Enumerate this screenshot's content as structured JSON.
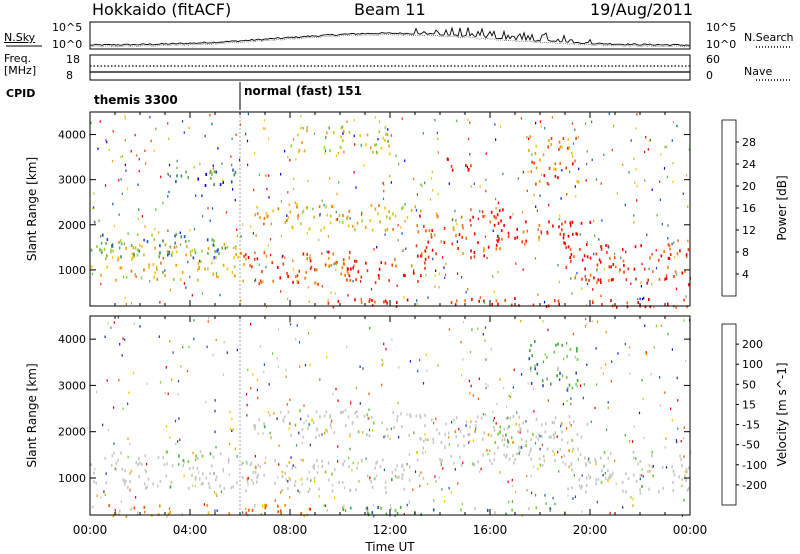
{
  "header": {
    "title": "Hokkaido (fitACF)",
    "beam": "Beam 11",
    "date": "19/Aug/2011"
  },
  "noise": {
    "left_label": "N.Sky",
    "right_label": "N.Search",
    "y_ticks_left": [
      "10^5",
      "10^0"
    ],
    "y_ticks_right": [
      "10^5",
      "10^0"
    ]
  },
  "freq": {
    "left_label": "Freq.",
    "left_unit": "[MHz]",
    "right_label": "Nave",
    "y_ticks_left": [
      "18",
      "8"
    ],
    "y_ticks_right": [
      "60",
      "0"
    ]
  },
  "cpid": {
    "label": "CPID",
    "programs": [
      {
        "name": "themis 3300",
        "start": 0.0
      },
      {
        "name": "normal (fast) 151",
        "start": 6.0
      }
    ]
  },
  "colors": {
    "power": [
      "#0000f0",
      "#1e50c8",
      "#3c8c64",
      "#64b450",
      "#a0d23c",
      "#f5c814",
      "#f5a014",
      "#f07814",
      "#f03c0a",
      "#f00000"
    ],
    "velocity": [
      "#e60000",
      "#f05a00",
      "#f09600",
      "#f0c800",
      "#c8c8c0",
      "#c8c8c0",
      "#78d23c",
      "#3caa3c",
      "#2850aa",
      "#1428c8"
    ]
  },
  "chart_data": [
    {
      "type": "heatmap",
      "name": "power",
      "x_range_hours": [
        0,
        24
      ],
      "ylim": [
        200,
        4500
      ],
      "ylabel": "Slant Range [km]",
      "y_ticks": [
        1000,
        2000,
        3000,
        4000
      ],
      "colorbar_label": "Power [dB]",
      "colorbar_ticks": [
        "28",
        "24",
        "20",
        "16",
        "12",
        "8",
        "4"
      ],
      "bands": [
        {
          "t0": 0.0,
          "t1": 6.0,
          "r0": 800,
          "r1": 1600,
          "level": 0.55
        },
        {
          "t0": 0.3,
          "t1": 5.5,
          "r0": 1300,
          "r1": 1850,
          "level": 0.3
        },
        {
          "t0": 6.0,
          "t1": 10.5,
          "r0": 700,
          "r1": 1450,
          "level": 0.8
        },
        {
          "t0": 10.0,
          "t1": 13.5,
          "r0": 750,
          "r1": 1300,
          "level": 0.85
        },
        {
          "t0": 13.0,
          "t1": 16.5,
          "r0": 1300,
          "r1": 2400,
          "level": 0.85
        },
        {
          "t0": 16.0,
          "t1": 20.0,
          "r0": 1600,
          "r1": 2200,
          "level": 0.9
        },
        {
          "t0": 19.0,
          "t1": 24.0,
          "r0": 700,
          "r1": 1600,
          "level": 0.9
        },
        {
          "t0": 6.5,
          "t1": 13.0,
          "r0": 1900,
          "r1": 2500,
          "level": 0.6
        },
        {
          "t0": 9.5,
          "t1": 24.0,
          "r0": 200,
          "r1": 400,
          "level": 0.9
        },
        {
          "t0": 3.0,
          "t1": 5.8,
          "r0": 2900,
          "r1": 3300,
          "level": 0.2
        },
        {
          "t0": 14.2,
          "t1": 15.3,
          "r0": 3200,
          "r1": 3600,
          "level": 0.95
        },
        {
          "t0": 17.5,
          "t1": 19.5,
          "r0": 2900,
          "r1": 4000,
          "level": 0.75
        },
        {
          "t0": 8.0,
          "t1": 12.0,
          "r0": 3600,
          "r1": 4200,
          "level": 0.5
        }
      ]
    },
    {
      "type": "heatmap",
      "name": "velocity",
      "x_range_hours": [
        0,
        24
      ],
      "ylim": [
        200,
        4500
      ],
      "ylabel": "Slant Range [km]",
      "y_ticks": [
        1000,
        2000,
        3000,
        4000
      ],
      "colorbar_label": "Velocity [m s^-1]",
      "colorbar_ticks": [
        "200",
        "100",
        "50",
        "15",
        "-15",
        "-50",
        "-100",
        "-200"
      ],
      "bands": [
        {
          "t0": 0.0,
          "t1": 6.0,
          "r0": 800,
          "r1": 1600,
          "level": 0.5
        },
        {
          "t0": 6.0,
          "t1": 13.5,
          "r0": 700,
          "r1": 1450,
          "level": 0.5
        },
        {
          "t0": 13.0,
          "t1": 20.0,
          "r0": 1300,
          "r1": 2400,
          "level": 0.5
        },
        {
          "t0": 19.0,
          "t1": 24.0,
          "r0": 700,
          "r1": 1600,
          "level": 0.5
        },
        {
          "t0": 6.5,
          "t1": 13.0,
          "r0": 1900,
          "r1": 2500,
          "level": 0.5
        },
        {
          "t0": 0.0,
          "t1": 9.0,
          "r0": 200,
          "r1": 450,
          "level": 0.3
        },
        {
          "t0": 10.0,
          "t1": 19.0,
          "r0": 200,
          "r1": 400,
          "level": 0.7
        },
        {
          "t0": 17.5,
          "t1": 19.5,
          "r0": 2900,
          "r1": 4000,
          "level": 0.72
        },
        {
          "t0": 16.0,
          "t1": 17.5,
          "r0": 1600,
          "r1": 2200,
          "level": 0.68
        }
      ]
    }
  ],
  "x_axis": {
    "ticks": [
      "00:00",
      "04:00",
      "08:00",
      "12:00",
      "16:00",
      "20:00",
      "00:00"
    ],
    "label": "Time UT"
  }
}
